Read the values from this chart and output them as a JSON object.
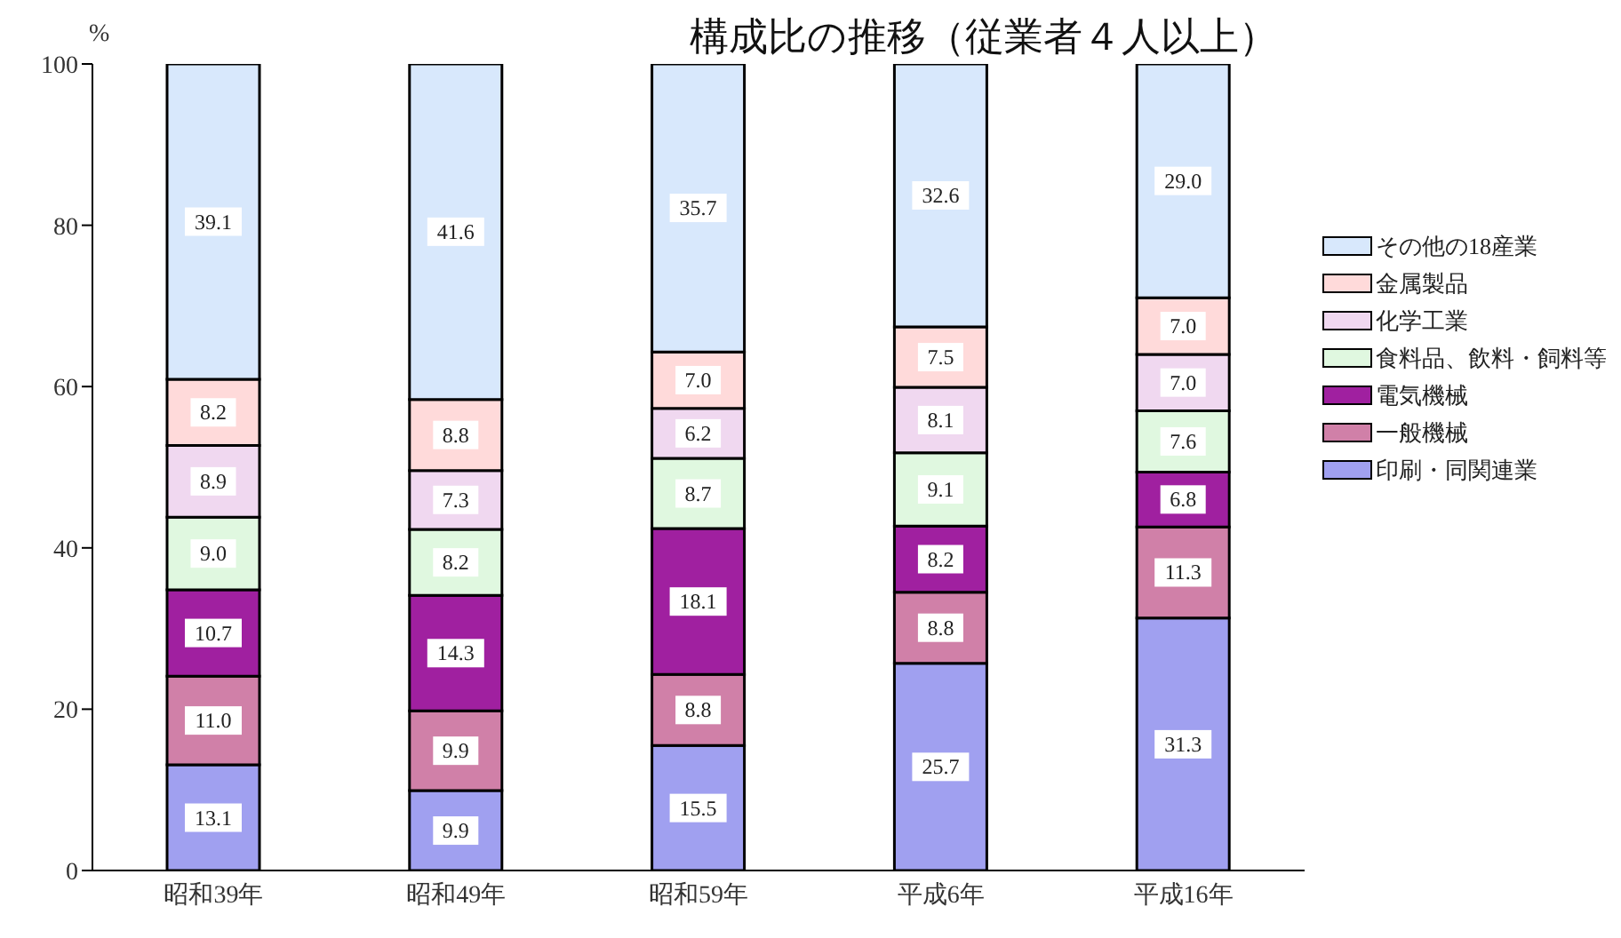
{
  "chart_data": {
    "type": "bar",
    "stacked": true,
    "title": "構成比の推移（従業者４人以上）",
    "ylabel": "%",
    "categories": [
      "昭和39年",
      "昭和49年",
      "昭和59年",
      "平成6年",
      "平成16年"
    ],
    "ylim": [
      0,
      100
    ],
    "yticks": [
      0,
      20,
      40,
      60,
      80,
      100
    ],
    "grid": false,
    "legend": "right",
    "series": [
      {
        "name": "印刷・同関連業",
        "color": "#a0a0f0",
        "values": [
          13.1,
          9.9,
          15.5,
          25.7,
          31.3
        ],
        "value_labels": [
          "13.1",
          "9.9",
          "15.5",
          "25.7",
          "31.3"
        ]
      },
      {
        "name": "一般機械",
        "color": "#d080a8",
        "values": [
          11.0,
          9.9,
          8.8,
          8.8,
          11.3
        ],
        "value_labels": [
          "11.0",
          "9.9",
          "8.8",
          "8.8",
          "11.3"
        ]
      },
      {
        "name": "電気機械",
        "color": "#a020a0",
        "values": [
          10.7,
          14.3,
          18.1,
          8.2,
          6.8
        ],
        "value_labels": [
          "10.7",
          "14.3",
          "18.1",
          "8.2",
          "6.8"
        ]
      },
      {
        "name": "食料品、飲料・飼料等",
        "color": "#e0f8e0",
        "values": [
          9.0,
          8.2,
          8.7,
          9.1,
          7.6
        ],
        "value_labels": [
          "9.0",
          "8.2",
          "8.7",
          "9.1",
          "7.6"
        ]
      },
      {
        "name": "化学工業",
        "color": "#f0d8f0",
        "values": [
          8.9,
          7.3,
          6.2,
          8.1,
          7.0
        ],
        "value_labels": [
          "8.9",
          "7.3",
          "6.2",
          "8.1",
          "7.0"
        ]
      },
      {
        "name": "金属製品",
        "color": "#ffdada",
        "values": [
          8.2,
          8.8,
          7.0,
          7.5,
          7.0
        ],
        "value_labels": [
          "8.2",
          "8.8",
          "7.0",
          "7.5",
          "7.0"
        ]
      },
      {
        "name": "その他の18産業",
        "color": "#d8e8fc",
        "values": [
          39.1,
          41.6,
          35.7,
          32.6,
          29.0
        ],
        "value_labels": [
          "39.1",
          "41.6",
          "35.7",
          "32.6",
          "29.0"
        ]
      }
    ]
  }
}
